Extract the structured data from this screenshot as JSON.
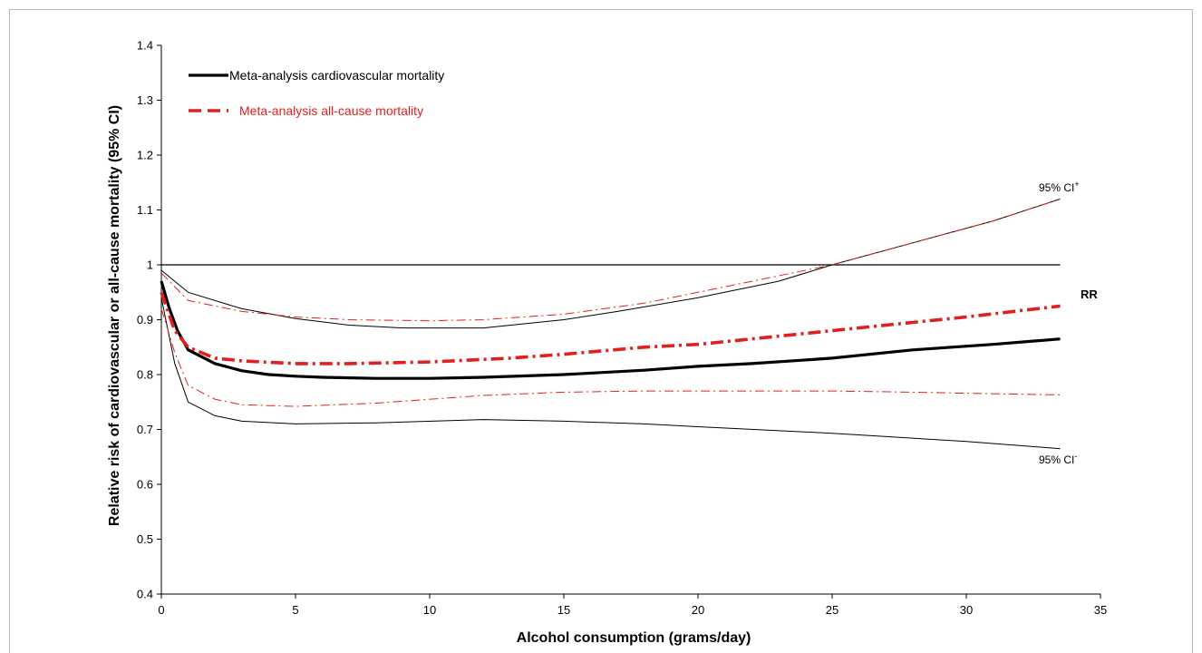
{
  "chart_data": {
    "type": "line",
    "xlabel": "Alcohol consumption (grams/day)",
    "ylabel": "Relative risk of cardiovascular or all-cause mortality (95% CI)",
    "xlim": [
      0,
      35
    ],
    "ylim": [
      0.4,
      1.4
    ],
    "x_ticks": [
      0,
      5,
      10,
      15,
      20,
      25,
      30,
      35
    ],
    "y_ticks": [
      0.4,
      0.5,
      0.6,
      0.7,
      0.8,
      0.9,
      1.0,
      1.1,
      1.2,
      1.3,
      1.4
    ],
    "y_tick_labels": [
      "0.4",
      "0.5",
      "0.6",
      "0.7",
      "0.8",
      "0.9",
      "1",
      "1.1",
      "1.2",
      "1.3",
      "1.4"
    ],
    "grid": false,
    "legend_position": "top-left",
    "reference_line": {
      "y": 1.0,
      "x": [
        0,
        33.5
      ]
    },
    "colors": {
      "cardiovascular": "#000000",
      "all_cause": "#e0201e"
    },
    "legend": [
      {
        "label": "Meta-analysis cardiovascular mortality",
        "color": "#000000",
        "style": "solid"
      },
      {
        "label": "Meta-analysis all-cause mortality",
        "color": "#e0201e",
        "style": "dashed"
      }
    ],
    "annotations": {
      "ci_upper_prefix": "95% CI",
      "ci_upper_sup": "+",
      "rr": "RR",
      "ci_lower_prefix": "95% CI",
      "ci_lower_sup": "-"
    },
    "series": [
      {
        "name": "Meta-analysis cardiovascular mortality",
        "role": "RR",
        "color": "#000000",
        "style": "solid",
        "weight": "thick",
        "points": [
          [
            0,
            0.97
          ],
          [
            0.3,
            0.92
          ],
          [
            0.6,
            0.88
          ],
          [
            1,
            0.845
          ],
          [
            2,
            0.82
          ],
          [
            3,
            0.807
          ],
          [
            4,
            0.8
          ],
          [
            5,
            0.797
          ],
          [
            6,
            0.795
          ],
          [
            7,
            0.794
          ],
          [
            8,
            0.793
          ],
          [
            10,
            0.793
          ],
          [
            12,
            0.795
          ],
          [
            15,
            0.8
          ],
          [
            18,
            0.808
          ],
          [
            20,
            0.815
          ],
          [
            22,
            0.82
          ],
          [
            25,
            0.83
          ],
          [
            28,
            0.845
          ],
          [
            31,
            0.855
          ],
          [
            33.5,
            0.865
          ]
        ]
      },
      {
        "name": "Meta-analysis cardiovascular mortality",
        "role": "95% CI upper",
        "color": "#000000",
        "style": "solid",
        "weight": "thin",
        "points": [
          [
            0,
            0.99
          ],
          [
            1,
            0.95
          ],
          [
            3,
            0.92
          ],
          [
            5,
            0.902
          ],
          [
            7,
            0.89
          ],
          [
            9,
            0.885
          ],
          [
            12,
            0.885
          ],
          [
            15,
            0.9
          ],
          [
            17,
            0.915
          ],
          [
            20,
            0.94
          ],
          [
            23,
            0.97
          ],
          [
            25,
            1.0
          ],
          [
            28,
            1.04
          ],
          [
            31,
            1.08
          ],
          [
            33.5,
            1.12
          ]
        ]
      },
      {
        "name": "Meta-analysis cardiovascular mortality",
        "role": "95% CI lower",
        "color": "#000000",
        "style": "solid",
        "weight": "thin",
        "points": [
          [
            0,
            0.94
          ],
          [
            0.5,
            0.82
          ],
          [
            1,
            0.75
          ],
          [
            2,
            0.725
          ],
          [
            3,
            0.715
          ],
          [
            5,
            0.71
          ],
          [
            8,
            0.712
          ],
          [
            12,
            0.718
          ],
          [
            15,
            0.715
          ],
          [
            18,
            0.71
          ],
          [
            20,
            0.705
          ],
          [
            25,
            0.693
          ],
          [
            30,
            0.678
          ],
          [
            33.5,
            0.665
          ]
        ]
      },
      {
        "name": "Meta-analysis all-cause mortality",
        "role": "RR",
        "color": "#e0201e",
        "style": "dashdot",
        "weight": "thick",
        "points": [
          [
            0,
            0.95
          ],
          [
            0.5,
            0.88
          ],
          [
            1,
            0.85
          ],
          [
            2,
            0.83
          ],
          [
            3,
            0.825
          ],
          [
            5,
            0.82
          ],
          [
            7,
            0.82
          ],
          [
            10,
            0.823
          ],
          [
            13,
            0.83
          ],
          [
            15,
            0.837
          ],
          [
            18,
            0.85
          ],
          [
            20,
            0.855
          ],
          [
            22,
            0.865
          ],
          [
            25,
            0.88
          ],
          [
            28,
            0.895
          ],
          [
            30,
            0.905
          ],
          [
            33.5,
            0.925
          ]
        ]
      },
      {
        "name": "Meta-analysis all-cause mortality",
        "role": "95% CI upper",
        "color": "#e0201e",
        "style": "dashdot",
        "weight": "thin",
        "points": [
          [
            0,
            0.985
          ],
          [
            1,
            0.935
          ],
          [
            3,
            0.915
          ],
          [
            5,
            0.905
          ],
          [
            7,
            0.9
          ],
          [
            10,
            0.898
          ],
          [
            12,
            0.9
          ],
          [
            15,
            0.91
          ],
          [
            18,
            0.93
          ],
          [
            20,
            0.95
          ],
          [
            23,
            0.98
          ],
          [
            25,
            1.0
          ],
          [
            28,
            1.04
          ],
          [
            31,
            1.08
          ],
          [
            33.5,
            1.12
          ]
        ]
      },
      {
        "name": "Meta-analysis all-cause mortality",
        "role": "95% CI lower",
        "color": "#e0201e",
        "style": "dashdot",
        "weight": "thin",
        "points": [
          [
            0,
            0.92
          ],
          [
            0.5,
            0.84
          ],
          [
            1,
            0.78
          ],
          [
            2,
            0.755
          ],
          [
            3,
            0.745
          ],
          [
            5,
            0.742
          ],
          [
            8,
            0.748
          ],
          [
            12,
            0.762
          ],
          [
            15,
            0.768
          ],
          [
            18,
            0.77
          ],
          [
            20,
            0.77
          ],
          [
            25,
            0.77
          ],
          [
            28,
            0.768
          ],
          [
            30,
            0.766
          ],
          [
            33.5,
            0.763
          ]
        ]
      }
    ]
  }
}
